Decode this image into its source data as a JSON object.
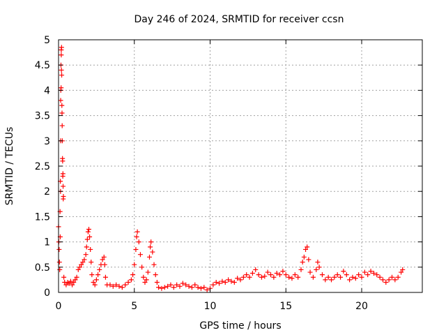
{
  "chart_data": {
    "type": "scatter",
    "title": "Day 246 of 2024, SRMTID for receiver ccsn",
    "xlabel": "GPS time / hours",
    "ylabel": "SRMTID / TECUs",
    "xlim": [
      0,
      24
    ],
    "ylim": [
      0,
      5
    ],
    "xticks": [
      0,
      5,
      10,
      15,
      20
    ],
    "yticks": [
      0,
      0.5,
      1,
      1.5,
      2,
      2.5,
      3,
      3.5,
      4,
      4.5,
      5
    ],
    "ytick_labels": [
      "0",
      "0.5",
      "1",
      "1.5",
      "2",
      "2.5",
      "3",
      "3.5",
      "4",
      "4.5",
      "5"
    ],
    "grid": true,
    "marker": "+",
    "color": "#ff0000",
    "series": [
      {
        "points": [
          [
            0.0,
            1.3
          ],
          [
            0.02,
            1.0
          ],
          [
            0.04,
            0.85
          ],
          [
            0.06,
            0.6
          ],
          [
            0.08,
            0.45
          ],
          [
            0.1,
            1.6
          ],
          [
            0.12,
            2.2
          ],
          [
            0.14,
            3.0
          ],
          [
            0.15,
            4.0
          ],
          [
            0.16,
            4.5
          ],
          [
            0.18,
            4.8
          ],
          [
            0.2,
            4.85
          ],
          [
            0.21,
            4.3
          ],
          [
            0.22,
            3.7
          ],
          [
            0.24,
            3.3
          ],
          [
            0.25,
            3.0
          ],
          [
            0.27,
            2.6
          ],
          [
            0.28,
            2.3
          ],
          [
            0.3,
            2.1
          ],
          [
            0.32,
            1.9
          ],
          [
            0.18,
            4.7
          ],
          [
            0.19,
            4.4
          ],
          [
            0.23,
            3.55
          ],
          [
            0.26,
            2.65
          ],
          [
            0.29,
            2.35
          ],
          [
            0.31,
            1.85
          ],
          [
            0.14,
            3.8
          ],
          [
            0.17,
            4.05
          ],
          [
            0.13,
            2.0
          ],
          [
            0.11,
            1.1
          ],
          [
            0.35,
            0.3
          ],
          [
            0.4,
            0.2
          ],
          [
            0.5,
            0.15
          ],
          [
            0.6,
            0.2
          ],
          [
            0.7,
            0.18
          ],
          [
            0.8,
            0.22
          ],
          [
            0.9,
            0.15
          ],
          [
            1.0,
            0.2
          ],
          [
            1.1,
            0.25
          ],
          [
            1.2,
            0.3
          ],
          [
            1.3,
            0.45
          ],
          [
            1.4,
            0.5
          ],
          [
            1.5,
            0.55
          ],
          [
            1.6,
            0.6
          ],
          [
            1.7,
            0.65
          ],
          [
            1.8,
            0.75
          ],
          [
            1.85,
            0.9
          ],
          [
            1.9,
            1.05
          ],
          [
            1.95,
            1.2
          ],
          [
            2.0,
            1.25
          ],
          [
            2.05,
            1.1
          ],
          [
            2.1,
            0.85
          ],
          [
            2.15,
            0.6
          ],
          [
            2.2,
            0.35
          ],
          [
            2.3,
            0.2
          ],
          [
            2.4,
            0.15
          ],
          [
            2.5,
            0.25
          ],
          [
            2.6,
            0.35
          ],
          [
            2.7,
            0.45
          ],
          [
            2.8,
            0.55
          ],
          [
            2.9,
            0.65
          ],
          [
            3.0,
            0.7
          ],
          [
            3.05,
            0.55
          ],
          [
            3.1,
            0.3
          ],
          [
            3.2,
            0.15
          ],
          [
            3.4,
            0.15
          ],
          [
            3.6,
            0.12
          ],
          [
            3.8,
            0.15
          ],
          [
            4.0,
            0.12
          ],
          [
            4.2,
            0.1
          ],
          [
            4.4,
            0.15
          ],
          [
            4.6,
            0.2
          ],
          [
            4.8,
            0.25
          ],
          [
            4.9,
            0.35
          ],
          [
            5.0,
            0.55
          ],
          [
            5.1,
            0.85
          ],
          [
            5.15,
            1.1
          ],
          [
            5.2,
            1.2
          ],
          [
            5.3,
            1.0
          ],
          [
            5.4,
            0.75
          ],
          [
            5.5,
            0.5
          ],
          [
            5.6,
            0.3
          ],
          [
            5.7,
            0.2
          ],
          [
            5.8,
            0.25
          ],
          [
            5.9,
            0.4
          ],
          [
            6.0,
            0.7
          ],
          [
            6.05,
            0.9
          ],
          [
            6.1,
            1.0
          ],
          [
            6.2,
            0.8
          ],
          [
            6.3,
            0.55
          ],
          [
            6.4,
            0.35
          ],
          [
            6.5,
            0.2
          ],
          [
            6.6,
            0.1
          ],
          [
            6.8,
            0.08
          ],
          [
            7.0,
            0.1
          ],
          [
            7.2,
            0.12
          ],
          [
            7.4,
            0.15
          ],
          [
            7.6,
            0.1
          ],
          [
            7.8,
            0.15
          ],
          [
            8.0,
            0.12
          ],
          [
            8.2,
            0.18
          ],
          [
            8.4,
            0.15
          ],
          [
            8.6,
            0.12
          ],
          [
            8.8,
            0.1
          ],
          [
            9.0,
            0.15
          ],
          [
            9.2,
            0.1
          ],
          [
            9.4,
            0.08
          ],
          [
            9.6,
            0.1
          ],
          [
            9.8,
            0.05
          ],
          [
            10.0,
            0.08
          ],
          [
            10.2,
            0.15
          ],
          [
            10.4,
            0.2
          ],
          [
            10.6,
            0.18
          ],
          [
            10.8,
            0.22
          ],
          [
            11.0,
            0.2
          ],
          [
            11.2,
            0.25
          ],
          [
            11.4,
            0.22
          ],
          [
            11.6,
            0.2
          ],
          [
            11.8,
            0.28
          ],
          [
            12.0,
            0.25
          ],
          [
            12.2,
            0.3
          ],
          [
            12.4,
            0.35
          ],
          [
            12.6,
            0.3
          ],
          [
            12.8,
            0.38
          ],
          [
            13.0,
            0.45
          ],
          [
            13.2,
            0.35
          ],
          [
            13.4,
            0.3
          ],
          [
            13.6,
            0.32
          ],
          [
            13.8,
            0.4
          ],
          [
            14.0,
            0.35
          ],
          [
            14.2,
            0.3
          ],
          [
            14.4,
            0.38
          ],
          [
            14.6,
            0.35
          ],
          [
            14.8,
            0.42
          ],
          [
            15.0,
            0.35
          ],
          [
            15.2,
            0.3
          ],
          [
            15.4,
            0.28
          ],
          [
            15.6,
            0.35
          ],
          [
            15.8,
            0.3
          ],
          [
            16.0,
            0.45
          ],
          [
            16.1,
            0.6
          ],
          [
            16.2,
            0.7
          ],
          [
            16.3,
            0.85
          ],
          [
            16.4,
            0.9
          ],
          [
            16.5,
            0.65
          ],
          [
            16.6,
            0.4
          ],
          [
            16.8,
            0.3
          ],
          [
            17.0,
            0.45
          ],
          [
            17.1,
            0.6
          ],
          [
            17.2,
            0.5
          ],
          [
            17.4,
            0.35
          ],
          [
            17.6,
            0.25
          ],
          [
            17.8,
            0.3
          ],
          [
            18.0,
            0.25
          ],
          [
            18.2,
            0.3
          ],
          [
            18.4,
            0.35
          ],
          [
            18.6,
            0.3
          ],
          [
            18.8,
            0.42
          ],
          [
            19.0,
            0.35
          ],
          [
            19.2,
            0.25
          ],
          [
            19.4,
            0.3
          ],
          [
            19.6,
            0.28
          ],
          [
            19.8,
            0.35
          ],
          [
            20.0,
            0.3
          ],
          [
            20.2,
            0.4
          ],
          [
            20.4,
            0.35
          ],
          [
            20.6,
            0.42
          ],
          [
            20.8,
            0.38
          ],
          [
            21.0,
            0.35
          ],
          [
            21.2,
            0.3
          ],
          [
            21.4,
            0.25
          ],
          [
            21.6,
            0.2
          ],
          [
            21.8,
            0.25
          ],
          [
            22.0,
            0.3
          ],
          [
            22.2,
            0.25
          ],
          [
            22.4,
            0.3
          ],
          [
            22.6,
            0.4
          ],
          [
            22.7,
            0.45
          ]
        ]
      }
    ]
  }
}
